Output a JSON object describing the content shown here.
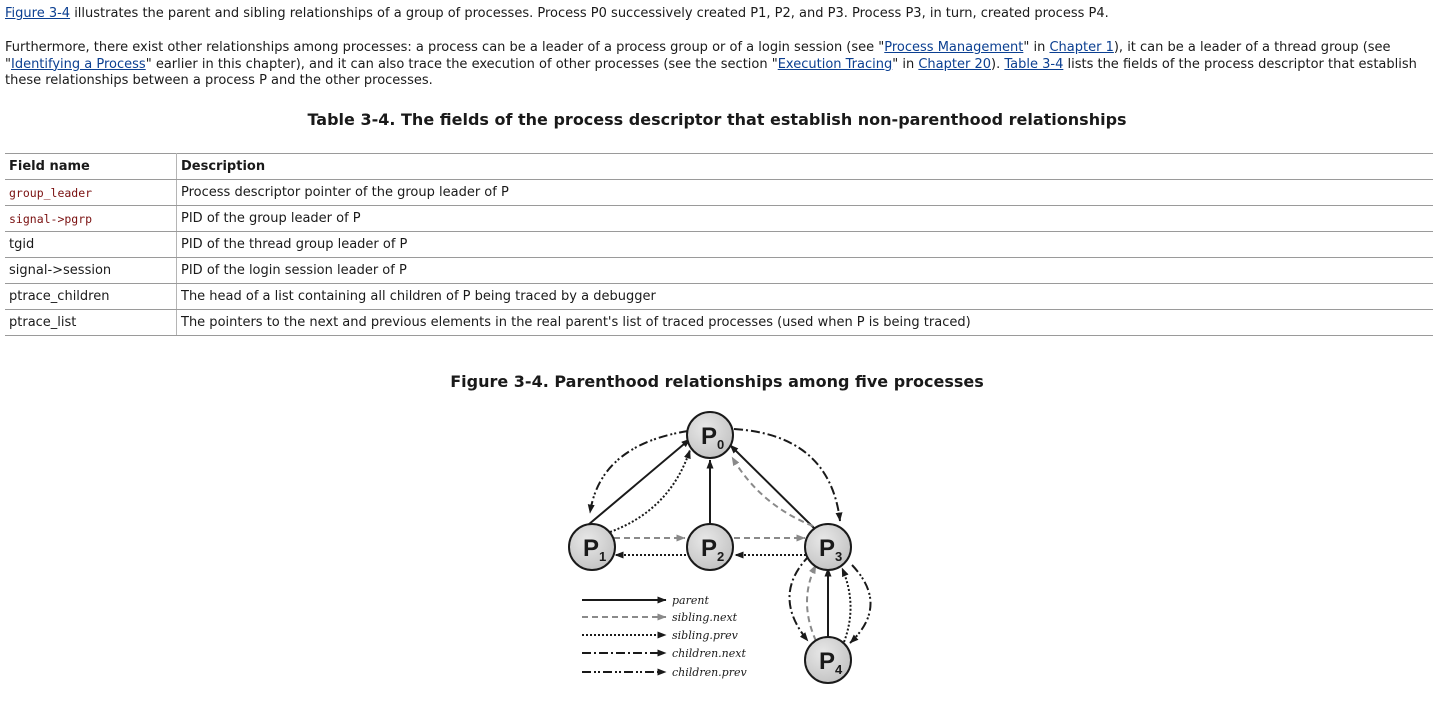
{
  "paragraph1": {
    "link_figure": "Figure 3-4",
    "text": " illustrates the parent and sibling relationships of a group of processes. Process P0 successively created P1, P2, and P3. Process P3, in turn, created process P4."
  },
  "paragraph2": {
    "t1": "Furthermore, there exist other relationships among processes: a process can be a leader of a process group or of a login session (see \"",
    "link1": "Process Management",
    "t2": "\" in ",
    "link2": "Chapter 1",
    "t3": "), it can be a leader of a thread group (see \"",
    "link3": "Identifying a Process",
    "t4": "\" earlier in this chapter), and it can also trace the execution of other processes (see the section \"",
    "link4": "Execution Tracing",
    "t5": "\" in ",
    "link5": "Chapter 20",
    "t6": "). ",
    "link6": "Table 3-4",
    "t7": " lists the fields of the process descriptor that establish these relationships between a process P and the other processes."
  },
  "table": {
    "caption": "Table 3-4. The fields of the process descriptor that establish non-parenthood relationships",
    "headers": [
      "Field name",
      "Description"
    ],
    "rows": [
      {
        "field": "group_leader",
        "description": "Process descriptor pointer of the group leader of P"
      },
      {
        "field": "signal->pgrp",
        "description": "PID of the group leader of P"
      },
      {
        "field": "tgid",
        "description": "PID of the thread group leader of P"
      },
      {
        "field": "signal->session",
        "description": "PID of the login session leader of P"
      },
      {
        "field": "ptrace_children",
        "description": "The head of a list containing all children of P being traced by a debugger"
      },
      {
        "field": "ptrace_list",
        "description": "The pointers to the next and previous elements in the real parent's list of traced processes (used when P is being traced)"
      }
    ]
  },
  "figure": {
    "caption": "Figure 3-4. Parenthood relationships among five processes",
    "nodes": [
      {
        "letter": "P",
        "sub": "0"
      },
      {
        "letter": "P",
        "sub": "1"
      },
      {
        "letter": "P",
        "sub": "2"
      },
      {
        "letter": "P",
        "sub": "3"
      },
      {
        "letter": "P",
        "sub": "4"
      }
    ],
    "legend": [
      "parent",
      "sibling.next",
      "sibling.prev",
      "children.next",
      "children.prev"
    ]
  }
}
